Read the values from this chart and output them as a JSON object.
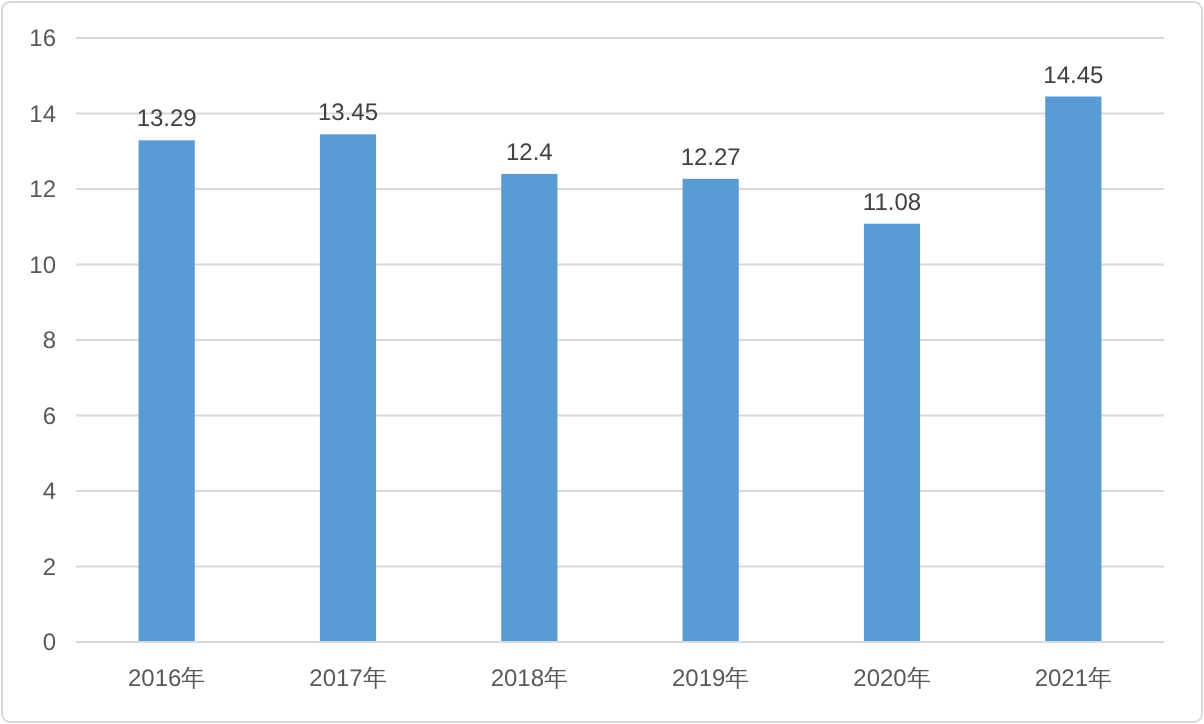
{
  "chart_data": {
    "type": "bar",
    "categories": [
      "2016年",
      "2017年",
      "2018年",
      "2019年",
      "2020年",
      "2021年"
    ],
    "values": [
      13.29,
      13.45,
      12.4,
      12.27,
      11.08,
      14.45
    ],
    "color": "#5b9bd5",
    "ylim": [
      0,
      16
    ],
    "yticks": [
      0,
      2,
      4,
      6,
      8,
      10,
      12,
      14,
      16
    ],
    "grid": "y",
    "data_labels": true
  }
}
